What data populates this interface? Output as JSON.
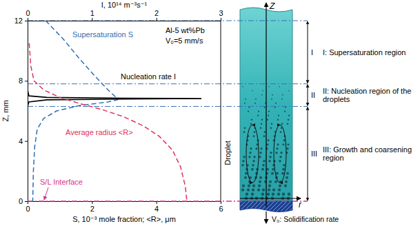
{
  "chart_data": {
    "type": "line",
    "xlabel": "S, 10⁻³ mole fraction; <R>, μm",
    "x2label": "I, 10¹⁴ m⁻³s⁻¹",
    "ylabel": "Z, mm",
    "xlim": [
      0,
      6
    ],
    "xticks": [
      0,
      2,
      4,
      6
    ],
    "x2lim": [
      0,
      3
    ],
    "x2ticks": [
      0,
      1,
      2,
      3
    ],
    "ylim": [
      0,
      12
    ],
    "yticks": [
      0,
      4,
      8,
      12
    ],
    "series": [
      {
        "name": "Supersaturation S",
        "color": "#2e6db4",
        "line_style": "dashed",
        "axis": "x",
        "x": [
          0.56,
          1.1,
          1.6,
          2.1,
          2.5,
          2.75,
          2.8,
          2.5,
          1.6,
          0.9,
          0.5,
          0.3,
          0.22,
          0.18,
          0.16
        ],
        "values": [
          12,
          10.8,
          9.5,
          8.3,
          7.4,
          6.9,
          6.75,
          6.6,
          6.35,
          6.0,
          5.5,
          4.8,
          3.6,
          2.0,
          0
        ]
      },
      {
        "name": "Nucleation rate I",
        "color": "#000000",
        "line_style": "solid",
        "axis": "x2",
        "x": [
          0,
          0.02,
          0.3,
          1.5,
          2.7,
          1.5,
          0.3,
          0.02,
          0
        ],
        "values": [
          7.4,
          7.0,
          6.9,
          6.85,
          6.82,
          6.79,
          6.74,
          6.6,
          6.3
        ]
      },
      {
        "name": "Average radius <R>",
        "color": "#e0305a",
        "line_style": "dashed",
        "axis": "x",
        "x": [
          0.05,
          0.1,
          0.2,
          0.5,
          1.0,
          1.6,
          2.3,
          3.0,
          3.6,
          4.1,
          4.5,
          4.75,
          4.9,
          4.95
        ],
        "values": [
          10.5,
          9.0,
          8.0,
          7.4,
          6.9,
          6.5,
          6.1,
          5.6,
          5.0,
          4.3,
          3.4,
          2.3,
          1.0,
          0
        ]
      }
    ],
    "annotations": [
      "Al-5 wt%Pb",
      "V₀=5 mm/s",
      "Droplet"
    ],
    "interface": {
      "label": "S/L Interface",
      "z": 0,
      "color": "#d6338a",
      "line_style": "dashdot"
    },
    "regions": [
      {
        "label": "I",
        "text": "I: Supersaturation region",
        "z": [
          7.8,
          12
        ]
      },
      {
        "label": "II",
        "text": "II: Nucleation region of the droplets",
        "z": [
          6.3,
          7.8
        ]
      },
      {
        "label": "III",
        "text": "III: Growth and coarsening region",
        "z": [
          0,
          6.3
        ]
      }
    ],
    "diagram": {
      "z_axis": "Z",
      "r_axis": "r",
      "rate": "V₀: Solidification rate"
    }
  }
}
